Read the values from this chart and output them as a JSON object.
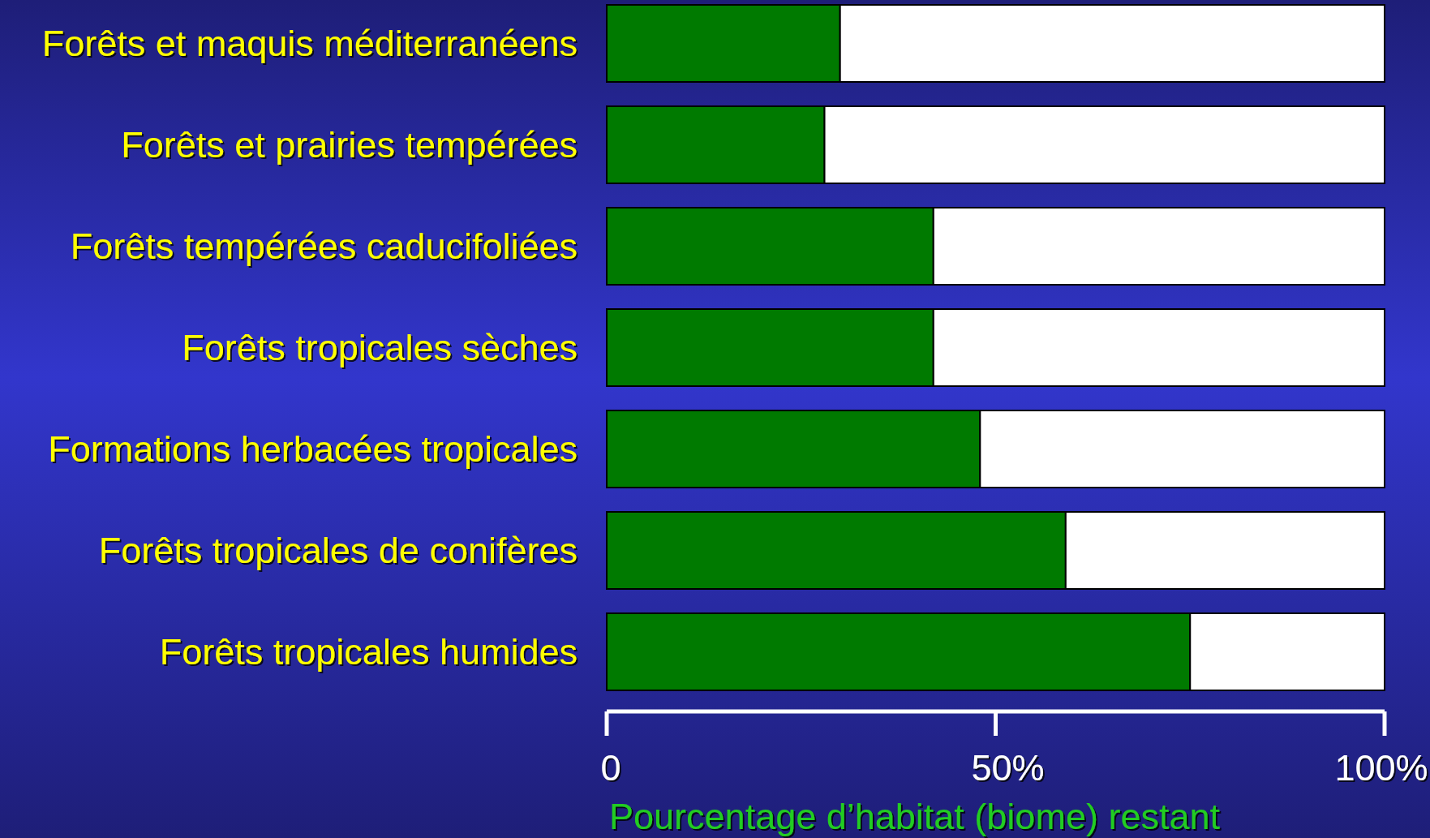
{
  "chart_data": {
    "type": "bar",
    "orientation": "horizontal",
    "stacked": true,
    "categories": [
      "Forêts et maquis méditerranéens",
      "Forêts et prairies tempérées",
      "Forêts tempérées caducifoliées",
      "Forêts tropicales sèches",
      "Formations herbacées tropicales",
      "Forêts tropicales de conifères",
      "Forêts tropicales humides"
    ],
    "series": [
      {
        "color": "#007a00",
        "values": [
          30,
          28,
          42,
          42,
          48,
          59,
          75
        ]
      },
      {
        "color": "#ffffff",
        "values": [
          70,
          72,
          58,
          58,
          52,
          41,
          25
        ]
      }
    ],
    "xlim": [
      0,
      100
    ],
    "xticks": [
      0,
      {
        "value": 50,
        "label": "50%"
      },
      {
        "value": 100,
        "label": "100%"
      }
    ],
    "xlabel": "Pourcentage d’habitat (biome) restant"
  }
}
